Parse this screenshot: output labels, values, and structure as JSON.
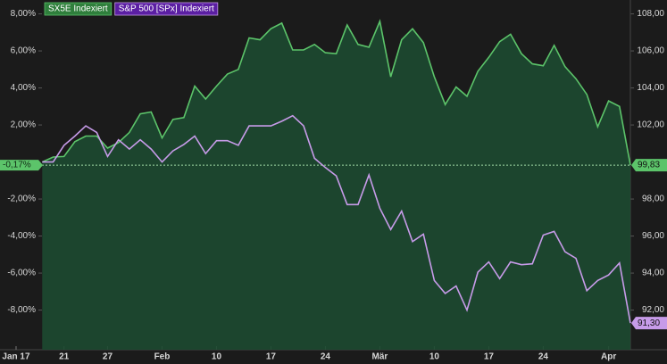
{
  "chart_data": {
    "type": "line",
    "legend": "top-left",
    "x": [
      0,
      1,
      2,
      3,
      4,
      5,
      6,
      7,
      8,
      9,
      10,
      11,
      12,
      13,
      14,
      15,
      16,
      17,
      18,
      19,
      20,
      21,
      22,
      23,
      24,
      25,
      26,
      27,
      28,
      29,
      30,
      31,
      32,
      33,
      34,
      35,
      36,
      37,
      38,
      39,
      40,
      41,
      42,
      43,
      44,
      45,
      46,
      47,
      48,
      49,
      50,
      51,
      52,
      53,
      54
    ],
    "xlim": [
      -2.4,
      54
    ],
    "xticks": [
      {
        "value": -2.4,
        "label": "Jan 17"
      },
      {
        "value": 2,
        "label": "21"
      },
      {
        "value": 6,
        "label": "27"
      },
      {
        "value": 11,
        "label": "Feb"
      },
      {
        "value": 16,
        "label": "10"
      },
      {
        "value": 21,
        "label": "17"
      },
      {
        "value": 26,
        "label": "24"
      },
      {
        "value": 31,
        "label": "Mär"
      },
      {
        "value": 36,
        "label": "10"
      },
      {
        "value": 41,
        "label": "17"
      },
      {
        "value": 46,
        "label": "24"
      },
      {
        "value": 52,
        "label": "Apr"
      }
    ],
    "ylim": [
      -10.14,
      8.75
    ],
    "yticks": [
      {
        "value": 8,
        "label": "8,00%"
      },
      {
        "value": 6,
        "label": "6,00%"
      },
      {
        "value": 4,
        "label": "4,00%"
      },
      {
        "value": 2,
        "label": "2,00%"
      },
      {
        "value": -2,
        "label": "-2,00%"
      },
      {
        "value": -4,
        "label": "-4,00%"
      },
      {
        "value": -6,
        "label": "-6,00%"
      },
      {
        "value": -8,
        "label": "-8,00%"
      }
    ],
    "y2lim": [
      89.86,
      108.75
    ],
    "y2ticks": [
      {
        "value": 108,
        "label": "108,00"
      },
      {
        "value": 106,
        "label": "106,00"
      },
      {
        "value": 104,
        "label": "104,00"
      },
      {
        "value": 102,
        "label": "102,00"
      },
      {
        "value": 98,
        "label": "98,00"
      },
      {
        "value": 96,
        "label": "96,00"
      },
      {
        "value": 94,
        "label": "94,00"
      },
      {
        "value": 92,
        "label": "92,00"
      }
    ],
    "reference_line": {
      "value": -0.17,
      "label": "-0,17%"
    },
    "series": [
      {
        "name": "SX5E  Indexiert",
        "color": "#5cc46a",
        "fill": "#1d4a31",
        "legend_bg": "#2f7f3c",
        "values": [
          0.0,
          0.27,
          0.3,
          1.1,
          1.4,
          1.4,
          0.75,
          1.05,
          1.6,
          2.6,
          2.7,
          1.3,
          2.3,
          2.4,
          4.1,
          3.4,
          4.1,
          4.75,
          5.0,
          6.7,
          6.6,
          7.2,
          7.5,
          6.05,
          6.05,
          6.35,
          5.9,
          5.85,
          7.4,
          6.35,
          6.2,
          7.6,
          4.6,
          6.6,
          7.2,
          6.45,
          4.6,
          3.1,
          4.05,
          3.55,
          4.9,
          5.65,
          6.5,
          6.9,
          5.85,
          5.3,
          5.2,
          6.3,
          5.15,
          4.5,
          3.65,
          1.9,
          3.3,
          3.0,
          -0.17
        ],
        "value_labels": [
          null,
          null,
          null,
          null,
          null,
          null,
          null,
          null,
          null,
          null,
          null,
          null,
          null,
          null,
          null,
          null,
          null,
          null,
          null,
          null,
          null,
          null,
          null,
          null,
          null,
          null,
          null,
          null,
          null,
          null,
          null,
          null,
          null,
          null,
          null,
          null,
          null,
          null,
          null,
          null,
          null,
          null,
          null,
          null,
          null,
          null,
          null,
          null,
          null,
          null,
          null,
          null,
          null,
          null,
          "99,83"
        ]
      },
      {
        "name": "S&P 500 [SPx] Indexiert",
        "color": "#c79be9",
        "legend_bg": "#5b1fa3",
        "values": [
          0.0,
          0.0,
          0.9,
          1.4,
          1.95,
          1.6,
          0.3,
          1.2,
          0.7,
          1.2,
          0.7,
          0.0,
          0.6,
          0.95,
          1.4,
          0.45,
          1.15,
          1.15,
          0.9,
          1.95,
          1.95,
          1.95,
          2.2,
          2.5,
          1.95,
          0.2,
          -0.3,
          -0.75,
          -2.3,
          -2.3,
          -0.7,
          -2.5,
          -3.65,
          -2.65,
          -4.3,
          -3.9,
          -6.4,
          -7.1,
          -6.7,
          -8.0,
          -5.95,
          -5.4,
          -6.3,
          -5.4,
          -5.55,
          -5.5,
          -3.95,
          -3.75,
          -4.85,
          -5.2,
          -6.95,
          -6.4,
          -6.1,
          -5.45,
          -8.7
        ],
        "value_labels": [
          null,
          null,
          null,
          null,
          null,
          null,
          null,
          null,
          null,
          null,
          null,
          null,
          null,
          null,
          null,
          null,
          null,
          null,
          null,
          null,
          null,
          null,
          null,
          null,
          null,
          null,
          null,
          null,
          null,
          null,
          null,
          null,
          null,
          null,
          null,
          null,
          null,
          null,
          null,
          null,
          null,
          null,
          null,
          null,
          null,
          null,
          null,
          null,
          null,
          null,
          null,
          null,
          null,
          null,
          "91,30"
        ]
      }
    ]
  }
}
